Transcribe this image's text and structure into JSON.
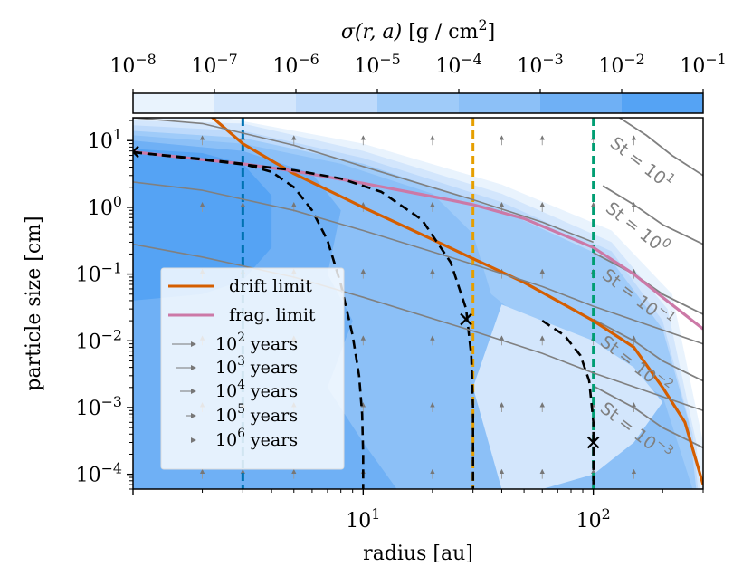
{
  "chart_data": {
    "type": "contour",
    "colorbar": {
      "label": "σ(r, a) [g / cm²]",
      "label_parts": {
        "sym": "σ",
        "args": "(r, a)",
        "unit_open": "[g / cm",
        "unit_exp": "2",
        "unit_close": "]"
      },
      "tick_exponents": [
        "-8",
        "-7",
        "-6",
        "-5",
        "-4",
        "-3",
        "-2",
        "-1"
      ],
      "levels": [
        -8,
        -7,
        -6,
        -5,
        -4,
        -3,
        -2,
        -1
      ],
      "colors": [
        "#ffffff",
        "#e9f3fd",
        "#d3e6fc",
        "#bedafb",
        "#9fcbf9",
        "#8cc0f7",
        "#6fb0f5",
        "#55a3f4"
      ]
    },
    "xaxis": {
      "label": "radius [au]",
      "scale": "log",
      "lim": [
        1,
        300
      ],
      "ticks": [
        {
          "value": 10,
          "base": "10",
          "exp": "1"
        },
        {
          "value": 100,
          "base": "10",
          "exp": "2"
        }
      ]
    },
    "yaxis": {
      "label": "particle size [cm]",
      "scale": "log",
      "lim": [
        6e-05,
        22
      ],
      "ticks": [
        {
          "value": 0.0001,
          "base": "10",
          "exp": "−4"
        },
        {
          "value": 0.001,
          "base": "10",
          "exp": "−3"
        },
        {
          "value": 0.01,
          "base": "10",
          "exp": "−2"
        },
        {
          "value": 0.1,
          "base": "10",
          "exp": "−1"
        },
        {
          "value": 1,
          "base": "10",
          "exp": "0"
        },
        {
          "value": 10,
          "base": "10",
          "exp": "1"
        }
      ]
    },
    "vertical_lines": [
      {
        "x": 3,
        "color": "#0072b2"
      },
      {
        "x": 30,
        "color": "#e69f00"
      },
      {
        "x": 100,
        "color": "#009e73"
      }
    ],
    "series": [
      {
        "name": "drift limit",
        "color": "#d55e00",
        "x": [
          1,
          2,
          3,
          5,
          10,
          20,
          30,
          50,
          100,
          150,
          200,
          250,
          300
        ],
        "y": [
          30,
          30,
          9,
          3.2,
          1.0,
          0.33,
          0.17,
          0.075,
          0.02,
          0.008,
          0.002,
          0.0006,
          7e-05
        ]
      },
      {
        "name": "frag. limit",
        "color": "#cc79a7",
        "x": [
          1,
          2,
          3,
          5,
          10,
          20,
          30,
          50,
          100,
          150,
          200,
          300
        ],
        "y": [
          6.8,
          5.2,
          4.5,
          3.5,
          2.3,
          1.45,
          1.1,
          0.68,
          0.25,
          0.1,
          0.045,
          0.015
        ]
      },
      {
        "name": "",
        "color": "#000000",
        "dashed": true,
        "x": [
          1,
          2,
          3,
          4,
          5,
          6,
          7,
          8,
          9,
          9.6,
          9.9,
          10,
          10
        ],
        "y": [
          6.7,
          5.3,
          4.5,
          3.4,
          2.0,
          0.9,
          0.32,
          0.07,
          0.012,
          0.003,
          0.0008,
          0.0002,
          6e-05
        ]
      },
      {
        "name": "",
        "color": "#000000",
        "dashed": true,
        "x": [
          1,
          2,
          3,
          5,
          8,
          12,
          18,
          24,
          28,
          29.5,
          30,
          30
        ],
        "y": [
          6.7,
          5.2,
          4.4,
          3.6,
          2.7,
          1.7,
          0.65,
          0.15,
          0.03,
          0.006,
          0.001,
          6e-05
        ]
      },
      {
        "name": "",
        "color": "#000000",
        "dashed": true,
        "x": [
          60,
          75,
          88,
          96,
          100,
          100
        ],
        "y": [
          0.02,
          0.012,
          0.006,
          0.0025,
          0.0006,
          6e-05
        ]
      },
      {
        "name": "",
        "color": "#808080",
        "x": [
          1,
          2,
          5,
          10,
          30,
          60,
          100
        ],
        "y": [
          22,
          18,
          8.5,
          4.1,
          1.3,
          0.6,
          0.3
        ]
      },
      {
        "name": "",
        "color": "#808080",
        "x": [
          1,
          2,
          5,
          10,
          30,
          60,
          100,
          300
        ],
        "y": [
          2.4,
          1.8,
          0.9,
          0.45,
          0.14,
          0.065,
          0.033,
          0.009
        ]
      },
      {
        "name": "",
        "color": "#808080",
        "x": [
          1,
          2,
          5,
          10,
          30,
          60,
          100,
          300
        ],
        "y": [
          0.28,
          0.18,
          0.09,
          0.045,
          0.014,
          0.0065,
          0.0033,
          0.0009
        ]
      }
    ],
    "st_lines": [
      {
        "label": "St = 10¹",
        "base": "St = 10",
        "exp": "1",
        "x": [
          130,
          170,
          220,
          300
        ],
        "y": [
          22,
          12,
          6,
          3
        ]
      },
      {
        "label": "St = 10⁰",
        "base": "St = 10",
        "exp": "0",
        "x": [
          110,
          150,
          200,
          300
        ],
        "y": [
          2.1,
          1.1,
          0.55,
          0.28
        ]
      },
      {
        "label": "St = 10⁻¹",
        "base": "St = 10",
        "exp": "−1",
        "x": [
          100,
          150,
          200,
          300
        ],
        "y": [
          0.21,
          0.1,
          0.05,
          0.025
        ]
      },
      {
        "label": "St = 10⁻²",
        "base": "St = 10",
        "exp": "−2",
        "x": [
          100,
          150,
          200,
          300
        ],
        "y": [
          0.021,
          0.01,
          0.005,
          0.0025
        ]
      },
      {
        "label": "St = 10⁻³",
        "base": "St = 10",
        "exp": "−3",
        "x": [
          100,
          150,
          200,
          300
        ],
        "y": [
          0.0021,
          0.001,
          0.0005,
          0.00025
        ]
      }
    ],
    "markers": [
      {
        "x": 1.0,
        "y": 6.8
      },
      {
        "x": 28,
        "y": 0.021
      },
      {
        "x": 100,
        "y": 0.0003
      }
    ],
    "legend": {
      "placement": "lower-left",
      "entries": [
        {
          "label": "drift limit",
          "kind": "line",
          "color": "#d55e00"
        },
        {
          "label": "frag. limit",
          "kind": "line",
          "color": "#cc79a7"
        },
        {
          "base": "10",
          "exp": "2",
          "suffix": " years",
          "kind": "arrow"
        },
        {
          "base": "10",
          "exp": "3",
          "suffix": " years",
          "kind": "arrow"
        },
        {
          "base": "10",
          "exp": "4",
          "suffix": " years",
          "kind": "arrow"
        },
        {
          "base": "10",
          "exp": "5",
          "suffix": " years",
          "kind": "arrow"
        },
        {
          "base": "10",
          "exp": "6",
          "suffix": " years",
          "kind": "arrow"
        }
      ]
    }
  }
}
